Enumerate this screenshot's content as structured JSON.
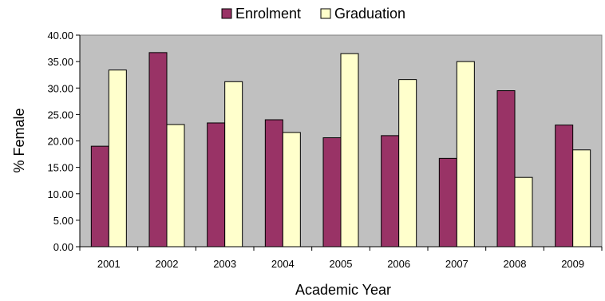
{
  "chart_data": {
    "type": "bar",
    "title": "",
    "xlabel": "Academic Year",
    "ylabel": "% Female",
    "categories": [
      "2001",
      "2002",
      "2003",
      "2004",
      "2005",
      "2006",
      "2007",
      "2008",
      "2009"
    ],
    "series": [
      {
        "name": "Enrolment",
        "color": "#993366",
        "values": [
          19.0,
          36.7,
          23.4,
          24.0,
          20.6,
          21.0,
          16.7,
          29.5,
          23.0
        ]
      },
      {
        "name": "Graduation",
        "color": "#ffffcc",
        "values": [
          33.4,
          23.1,
          31.2,
          21.6,
          36.5,
          31.6,
          35.0,
          13.1,
          18.3
        ]
      }
    ],
    "ylim": [
      0,
      40
    ],
    "yticks": [
      "0.00",
      "5.00",
      "10.00",
      "15.00",
      "20.00",
      "25.00",
      "30.00",
      "35.00",
      "40.00"
    ],
    "plot_background": "#c0c0c0",
    "grid": false,
    "legend_position": "top-center"
  }
}
